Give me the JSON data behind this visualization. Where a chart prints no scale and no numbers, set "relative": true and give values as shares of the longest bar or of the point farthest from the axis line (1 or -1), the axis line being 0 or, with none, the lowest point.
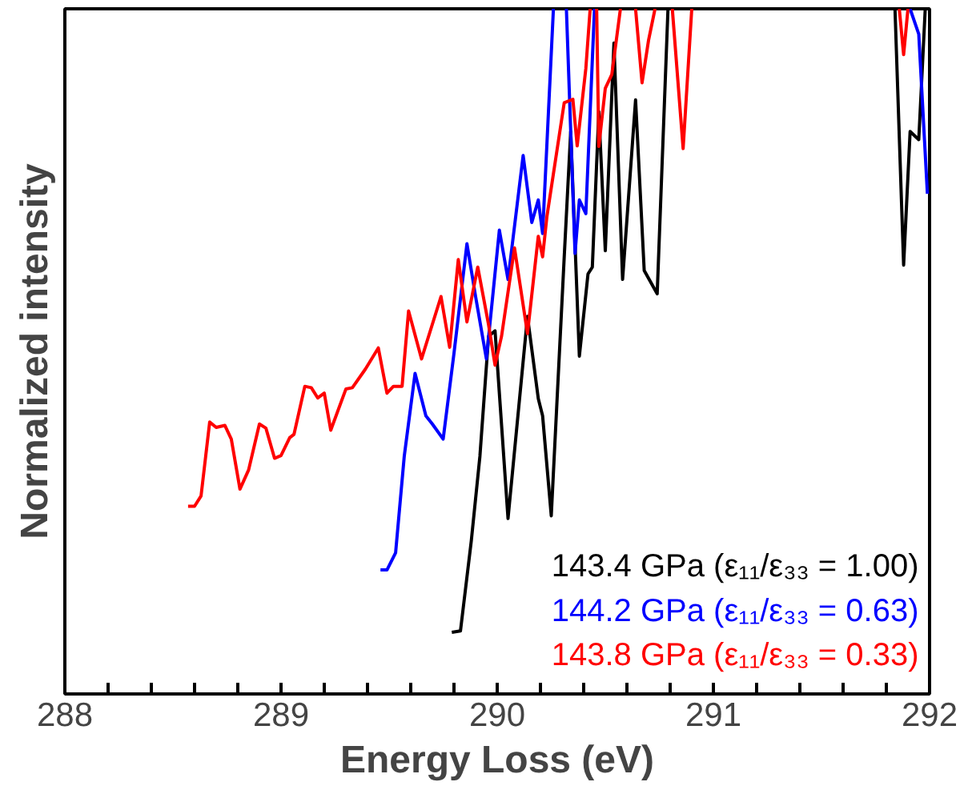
{
  "chart_data": {
    "type": "line",
    "relative": true,
    "xlabel": "Energy Loss (eV)",
    "ylabel": "Normalized intensity",
    "xlim": [
      288,
      292
    ],
    "xticks": [
      288,
      {
        "value": 288.2,
        "label": null
      },
      {
        "value": 288.4,
        "label": null
      },
      {
        "value": 288.6,
        "label": null
      },
      {
        "value": 288.8,
        "label": null
      },
      289,
      {
        "value": 289.2,
        "label": null
      },
      {
        "value": 289.4,
        "label": null
      },
      {
        "value": 289.6,
        "label": null
      },
      {
        "value": 289.8,
        "label": null
      },
      290,
      {
        "value": 290.2,
        "label": null
      },
      {
        "value": 290.4,
        "label": null
      },
      {
        "value": 290.6,
        "label": null
      },
      {
        "value": 290.8,
        "label": null
      },
      291,
      {
        "value": 291.2,
        "label": null
      },
      {
        "value": 291.4,
        "label": null
      },
      {
        "value": 291.6,
        "label": null
      },
      {
        "value": 291.8,
        "label": null
      },
      292
    ],
    "legend": "bottom right",
    "grid": false,
    "marker": "none",
    "line_style": "solid",
    "series": [
      {
        "name": "143.4 GPa (ε₁₁/ε₃₃ = 1.00)",
        "color": "#000000",
        "x": [
          289.79,
          289.83,
          289.88,
          289.92,
          289.96,
          289.99,
          290.05,
          290.14,
          290.19,
          290.21,
          290.25,
          290.31,
          290.34,
          290.38,
          290.42,
          290.44,
          290.47,
          290.5,
          290.54,
          290.58,
          290.64,
          290.68,
          290.74,
          290.79,
          290.8,
          291.83,
          291.84,
          291.88,
          291.91,
          291.95,
          291.98
        ],
        "values": [
          0.09,
          0.092,
          0.223,
          0.347,
          0.522,
          0.53,
          0.256,
          0.551,
          0.431,
          0.406,
          0.26,
          0.638,
          0.821,
          0.493,
          0.613,
          0.623,
          0.85,
          0.647,
          0.95,
          0.605,
          0.867,
          0.618,
          0.584,
          1.0,
          null,
          null,
          1.0,
          0.626,
          0.821,
          0.809,
          1.0
        ]
      },
      {
        "name": "144.2 GPa (ε₁₁/ε₃₃ = 0.63)",
        "color": "#0000ff",
        "x": [
          289.46,
          289.49,
          289.53,
          289.57,
          289.62,
          289.67,
          289.7,
          289.75,
          289.8,
          289.86,
          289.9,
          289.95,
          290.01,
          290.05,
          290.12,
          290.16,
          290.19,
          290.21,
          290.26,
          290.27,
          290.31,
          290.32,
          290.36,
          290.38,
          290.41,
          290.45,
          290.46,
          291.9,
          291.91,
          291.95,
          291.99
        ],
        "values": [
          0.181,
          0.181,
          0.206,
          0.347,
          0.468,
          0.406,
          0.394,
          0.372,
          0.497,
          0.657,
          0.58,
          0.489,
          0.677,
          0.605,
          0.786,
          0.688,
          0.721,
          0.672,
          1.0,
          null,
          null,
          1.0,
          0.643,
          0.721,
          0.701,
          1.0,
          null,
          null,
          1.0,
          0.963,
          0.73
        ]
      },
      {
        "name": "143.8 GPa (ε₁₁/ε₃₃ = 0.33)",
        "color": "#ff0000",
        "x": [
          288.57,
          288.6,
          288.63,
          288.67,
          288.7,
          288.74,
          288.77,
          288.81,
          288.85,
          288.9,
          288.93,
          288.97,
          289.0,
          289.04,
          289.06,
          289.11,
          289.14,
          289.17,
          289.2,
          289.23,
          289.3,
          289.33,
          289.39,
          289.45,
          289.49,
          289.52,
          289.56,
          289.59,
          289.65,
          289.74,
          289.78,
          289.82,
          289.86,
          289.91,
          289.96,
          289.99,
          290.02,
          290.08,
          290.14,
          290.19,
          290.21,
          290.23,
          290.31,
          290.35,
          290.37,
          290.41,
          290.43,
          290.44,
          290.46,
          290.47,
          290.5,
          290.53,
          290.57,
          290.6,
          290.64,
          290.67,
          290.7,
          290.73,
          290.77,
          290.81,
          290.86,
          290.9,
          291.0,
          291.86,
          291.88,
          291.9
        ],
        "values": [
          0.274,
          0.274,
          0.289,
          0.397,
          0.389,
          0.392,
          0.372,
          0.299,
          0.327,
          0.394,
          0.388,
          0.344,
          0.348,
          0.374,
          0.379,
          0.449,
          0.447,
          0.432,
          0.439,
          0.385,
          0.445,
          0.447,
          0.474,
          0.505,
          0.439,
          0.449,
          0.449,
          0.559,
          0.489,
          0.58,
          0.506,
          0.634,
          0.543,
          0.623,
          0.539,
          0.48,
          0.522,
          0.651,
          0.526,
          0.668,
          0.638,
          0.697,
          0.863,
          0.868,
          0.8,
          0.913,
          1.0,
          null,
          1.0,
          0.799,
          0.884,
          0.904,
          1.0,
          null,
          1.0,
          0.892,
          0.954,
          1.0,
          null,
          1.0,
          0.796,
          1.0,
          null,
          1.0,
          0.933,
          1.0
        ]
      }
    ]
  }
}
